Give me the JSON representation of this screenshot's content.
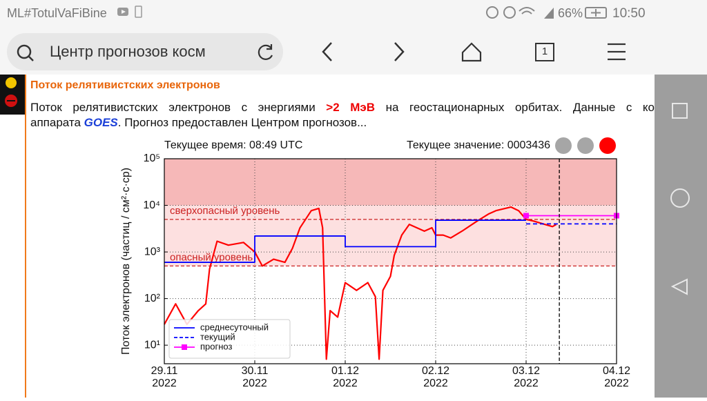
{
  "status_bar": {
    "left": "ML#TotulVaFiBine",
    "battery": "66%",
    "time": "10:50"
  },
  "browser": {
    "address": "Центр прогнозов косм",
    "tab_count": "1"
  },
  "article": {
    "title": "Поток релятивистских электронов",
    "line1": [
      "Поток релятивистских электронов с энергиями",
      ">2 МэВ",
      "на геостационарных орбитах. Данные с ко"
    ],
    "line2": [
      "аппарата",
      "GOES",
      ". Прогноз предоставлен Центром прогнозов..."
    ]
  },
  "chart_data": {
    "type": "line",
    "header_left": "Текущее время: 08:49 UTC",
    "header_right": "Текущее значение: 0003436",
    "status_lamps": [
      "#a6a6a6",
      "#a6a6a6",
      "#ff0000"
    ],
    "ylabel": "Поток электронов (частиц / см²·с·ср)",
    "yscale": "log",
    "ylim": [
      4,
      100000
    ],
    "yticks": [
      {
        "value": 10,
        "label": "10¹"
      },
      {
        "value": 100,
        "label": "10²"
      },
      {
        "value": 1000,
        "label": "10³"
      },
      {
        "value": 10000,
        "label": "10⁴"
      },
      {
        "value": 100000,
        "label": "10⁵"
      }
    ],
    "xlim": [
      "2022-11-29",
      "2022-12-04"
    ],
    "xticks": [
      {
        "value": "2022-11-29",
        "label": "29.11\n2022"
      },
      {
        "value": "2022-11-30",
        "label": "30.11\n2022"
      },
      {
        "value": "2022-12-01",
        "label": "01.12\n2022"
      },
      {
        "value": "2022-12-02",
        "label": "02.12\n2022"
      },
      {
        "value": "2022-12-03",
        "label": "03.12\n2022"
      },
      {
        "value": "2022-12-04",
        "label": "04.12\n2022"
      }
    ],
    "grid": true,
    "now": "2022-12-03T08:49",
    "bands": [
      {
        "from": 500,
        "to": 10000,
        "color": "#fde0e0"
      },
      {
        "from": 10000,
        "to": 100000,
        "color": "#f6b8b8"
      }
    ],
    "levels": [
      {
        "name": "сверхопасный уровень",
        "value": 5000,
        "color": "#cc2222"
      },
      {
        "name": "опасный уровень",
        "value": 500,
        "color": "#cc2222"
      }
    ],
    "legend": "lower left",
    "series": [
      {
        "color": "#ff0000",
        "x": [
          "2022-11-29T00:00",
          "2022-11-29T03:00",
          "2022-11-29T06:00",
          "2022-11-29T09:00",
          "2022-11-29T11:00",
          "2022-11-29T12:00",
          "2022-11-29T14:00",
          "2022-11-29T17:00",
          "2022-11-29T21:00",
          "2022-11-30T00:00",
          "2022-11-30T02:00",
          "2022-11-30T05:00",
          "2022-11-30T08:00",
          "2022-11-30T10:00",
          "2022-11-30T12:00",
          "2022-11-30T15:00",
          "2022-11-30T17:00",
          "2022-11-30T18:00",
          "2022-11-30T19:00",
          "2022-11-30T20:00",
          "2022-11-30T22:00",
          "2022-12-01T00:00",
          "2022-12-01T03:00",
          "2022-12-01T06:00",
          "2022-12-01T08:00",
          "2022-12-01T09:00",
          "2022-12-01T10:00",
          "2022-12-01T12:00",
          "2022-12-01T13:00",
          "2022-12-01T15:00",
          "2022-12-01T17:00",
          "2022-12-01T19:00",
          "2022-12-01T21:00",
          "2022-12-01T23:00",
          "2022-12-02T00:00",
          "2022-12-02T02:00",
          "2022-12-02T04:00",
          "2022-12-02T07:00",
          "2022-12-02T11:00",
          "2022-12-02T14:00",
          "2022-12-02T16:00",
          "2022-12-02T20:00",
          "2022-12-02T22:00",
          "2022-12-03T00:00",
          "2022-12-03T02:00",
          "2022-12-03T05:00",
          "2022-12-03T07:00",
          "2022-12-03T08:00"
        ],
        "values": [
          28,
          77,
          28,
          55,
          77,
          430,
          1700,
          1400,
          1600,
          1000,
          500,
          700,
          600,
          1200,
          3300,
          7700,
          8600,
          3300,
          5,
          55,
          40,
          220,
          150,
          220,
          110,
          5,
          150,
          300,
          840,
          2300,
          3900,
          3300,
          2800,
          3300,
          2300,
          2300,
          2000,
          2800,
          4600,
          6500,
          7700,
          9200,
          7700,
          5000,
          4600,
          3900,
          3500,
          3900
        ]
      },
      {
        "name": "среднесуточный",
        "color": "#0000ff",
        "step": "post",
        "x": [
          "2022-11-29",
          "2022-11-30",
          "2022-12-01",
          "2022-12-02",
          "2022-12-03"
        ],
        "values": [
          600,
          2200,
          1300,
          4800,
          4800
        ]
      },
      {
        "name": "текущий",
        "color": "#0000ff",
        "dash": true,
        "x": [
          "2022-12-03",
          "2022-12-04"
        ],
        "values": [
          4000,
          4000
        ]
      },
      {
        "name": "прогноз",
        "color": "#ff00ff",
        "markers": true,
        "x": [
          "2022-12-03",
          "2022-12-04"
        ],
        "values": [
          6000,
          6000
        ]
      }
    ]
  }
}
